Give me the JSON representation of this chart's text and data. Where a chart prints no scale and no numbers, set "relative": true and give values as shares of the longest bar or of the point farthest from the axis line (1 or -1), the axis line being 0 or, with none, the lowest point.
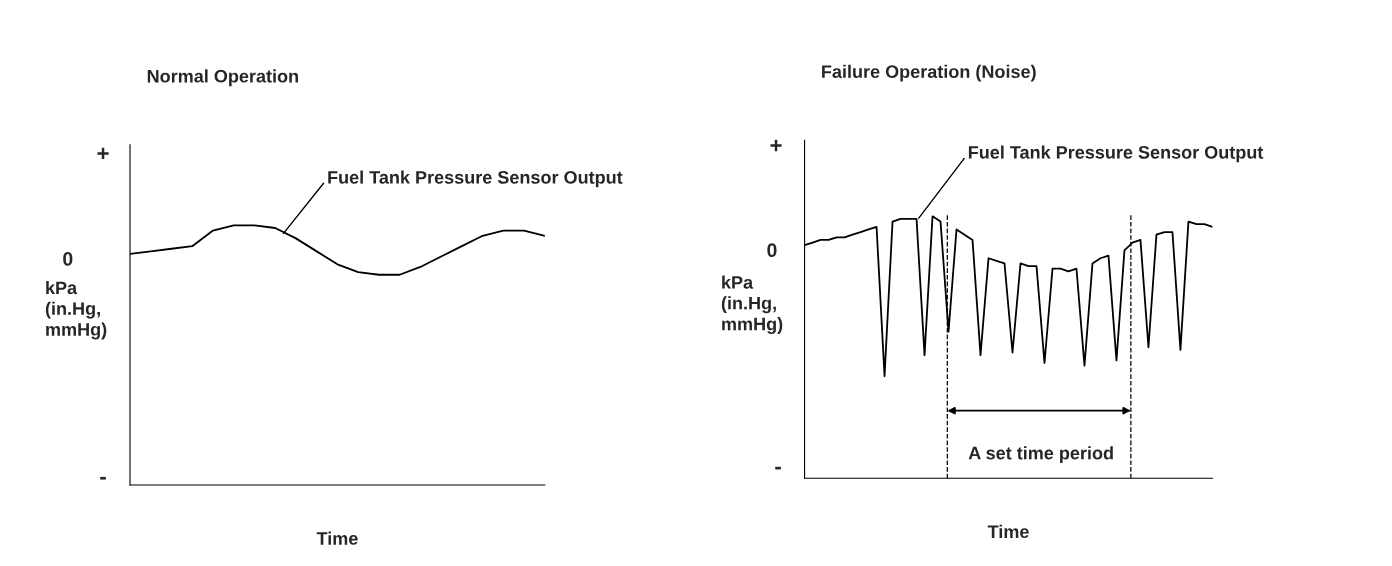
{
  "chart_data": [
    {
      "type": "line",
      "title": "Normal Operation",
      "xlabel": "Time",
      "ylabel": "kPa\n(in.Hg,\nmmHg)",
      "relative": true,
      "categories": [
        null,
        null,
        null,
        null,
        null,
        null,
        null,
        null,
        null,
        null,
        null,
        null,
        null,
        null,
        null,
        null,
        null,
        null,
        null,
        null,
        null
      ],
      "series": [
        {
          "color": "#000000",
          "values": [
            0.89,
            0.9,
            0.91,
            0.92,
            0.98,
            1.0,
            1.0,
            0.99,
            0.95,
            0.9,
            0.85,
            0.82,
            0.81,
            0.81,
            0.84,
            0.88,
            0.92,
            0.96,
            0.98,
            0.98,
            0.96
          ]
        }
      ],
      "annotations": [
        "+",
        "0",
        "-",
        "Fuel Tank Pressure Sensor Output"
      ],
      "marker": "none",
      "line_style": "solid"
    },
    {
      "type": "line",
      "title": "Failure Operation (Noise)",
      "xlabel": "Time",
      "ylabel": "kPa\n(in.Hg,\nmmHg)",
      "relative": true,
      "categories": [
        null,
        null,
        null,
        null,
        null,
        null,
        null,
        null,
        null,
        null,
        null,
        null,
        null,
        null,
        null,
        null,
        null,
        null,
        null,
        null,
        null,
        null,
        null,
        null,
        null,
        null,
        null,
        null,
        null,
        null,
        null,
        null,
        null,
        null,
        null,
        null,
        null,
        null,
        null,
        null,
        null,
        null,
        null,
        null,
        null,
        null,
        null,
        null,
        null,
        null,
        null,
        null
      ],
      "series": [
        {
          "color": "#000000",
          "values": [
            0.89,
            0.9,
            0.91,
            0.91,
            0.92,
            0.92,
            0.93,
            0.94,
            0.95,
            0.96,
            0.39,
            0.98,
            0.99,
            0.99,
            0.99,
            0.47,
            1.0,
            0.98,
            0.56,
            0.95,
            0.93,
            0.91,
            0.47,
            0.84,
            0.83,
            0.82,
            0.48,
            0.82,
            0.81,
            0.81,
            0.44,
            0.8,
            0.8,
            0.79,
            0.8,
            0.43,
            0.82,
            0.84,
            0.85,
            0.45,
            0.87,
            0.9,
            0.91,
            0.5,
            0.93,
            0.94,
            0.94,
            0.49,
            0.98,
            0.97,
            0.97,
            0.96
          ]
        }
      ],
      "annotations": [
        "+",
        "0",
        "-",
        "Fuel Tank Pressure Sensor Output",
        "A set time period"
      ],
      "marker": "none",
      "line_style": "solid"
    }
  ]
}
